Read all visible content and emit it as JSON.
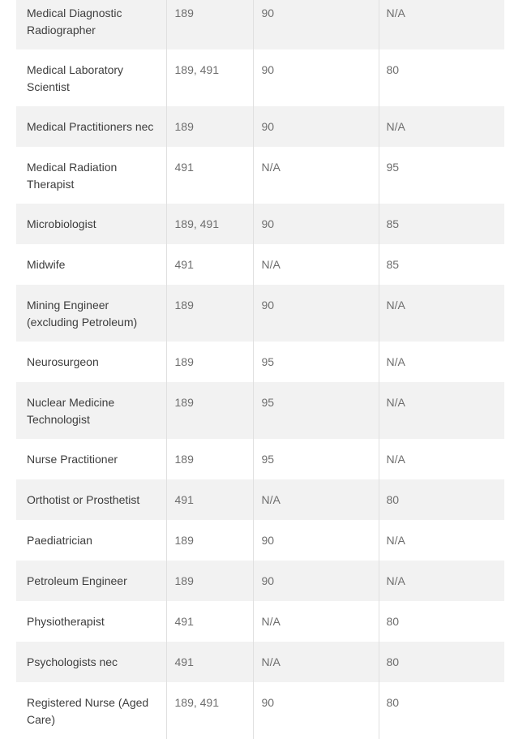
{
  "colors": {
    "row_shaded": "#f2f2f2",
    "row_plain": "#ffffff",
    "grid_line": "#e0e0e0",
    "occupation_text": "#3d3d3d",
    "value_text": "#6e6e6e"
  },
  "table": {
    "rows": [
      {
        "occupation": "Medical Diagnostic Radiographer",
        "subclass": "189",
        "points_a": "90",
        "points_b": "N/A",
        "shaded": true,
        "tall": true
      },
      {
        "occupation": "Medical Laboratory Scientist",
        "subclass": "189, 491",
        "points_a": "90",
        "points_b": "80",
        "shaded": false,
        "tall": true
      },
      {
        "occupation": "Medical Practitioners nec",
        "subclass": "189",
        "points_a": "90",
        "points_b": "N/A",
        "shaded": true,
        "tall": false
      },
      {
        "occupation": "Medical Radiation Therapist",
        "subclass": "491",
        "points_a": "N/A",
        "points_b": "95",
        "shaded": false,
        "tall": true
      },
      {
        "occupation": "Microbiologist",
        "subclass": "189, 491",
        "points_a": "90",
        "points_b": "85",
        "shaded": true,
        "tall": false
      },
      {
        "occupation": "Midwife",
        "subclass": "491",
        "points_a": "N/A",
        "points_b": "85",
        "shaded": false,
        "tall": false
      },
      {
        "occupation": "Mining Engineer (excluding Petroleum)",
        "subclass": "189",
        "points_a": "90",
        "points_b": "N/A",
        "shaded": true,
        "tall": true
      },
      {
        "occupation": "Neurosurgeon",
        "subclass": "189",
        "points_a": "95",
        "points_b": "N/A",
        "shaded": false,
        "tall": false
      },
      {
        "occupation": "Nuclear Medicine Technologist",
        "subclass": "189",
        "points_a": "95",
        "points_b": "N/A",
        "shaded": true,
        "tall": true
      },
      {
        "occupation": "Nurse Practitioner",
        "subclass": "189",
        "points_a": "95",
        "points_b": "N/A",
        "shaded": false,
        "tall": false
      },
      {
        "occupation": "Orthotist or Prosthetist",
        "subclass": "491",
        "points_a": "N/A",
        "points_b": "80",
        "shaded": true,
        "tall": false
      },
      {
        "occupation": "Paediatrician",
        "subclass": "189",
        "points_a": "90",
        "points_b": "N/A",
        "shaded": false,
        "tall": false
      },
      {
        "occupation": "Petroleum Engineer",
        "subclass": "189",
        "points_a": "90",
        "points_b": "N/A",
        "shaded": true,
        "tall": false
      },
      {
        "occupation": "Physiotherapist",
        "subclass": "491",
        "points_a": "N/A",
        "points_b": "80",
        "shaded": false,
        "tall": false
      },
      {
        "occupation": "Psychologists nec",
        "subclass": "491",
        "points_a": "N/A",
        "points_b": "80",
        "shaded": true,
        "tall": false
      },
      {
        "occupation": "Registered Nurse (Aged Care)",
        "subclass": "189, 491",
        "points_a": "90",
        "points_b": "80",
        "shaded": false,
        "tall": true
      }
    ]
  }
}
